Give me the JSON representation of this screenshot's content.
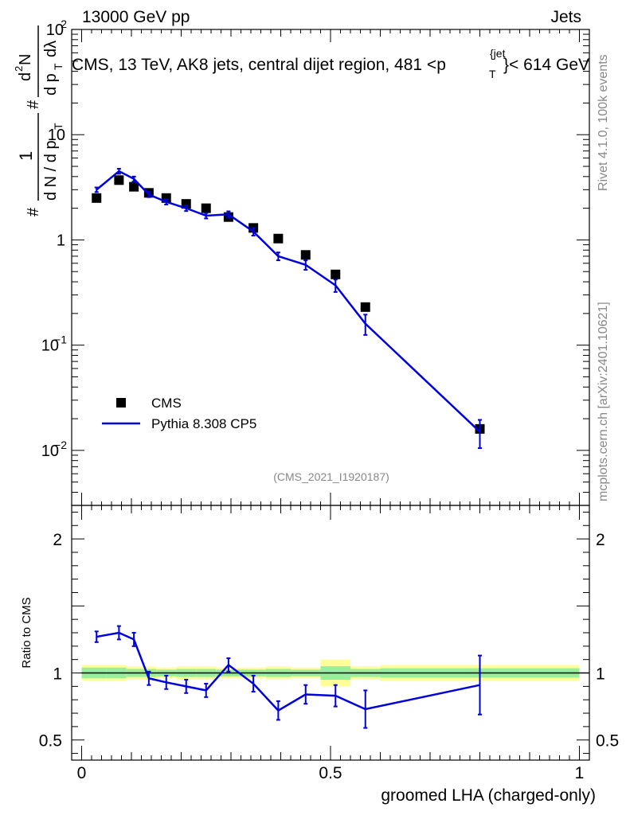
{
  "header": {
    "energy": "13000 GeV pp",
    "category": "Jets"
  },
  "side_labels": {
    "rivet": "Rivet 4.1.0,  100k events",
    "mcplots": "mcplots.cern.ch [arXiv:2401.10621]"
  },
  "chart_data": [
    {
      "type": "scatter",
      "panel": "main",
      "title": "CMS, 13 TeV, AK8 jets, central dijet region, 481 <p_T^{jet}< 614 GeV",
      "title_parts": [
        "CMS, 13 TeV, AK8 jets, central dijet region, 481 <p",
        "{jet",
        "T",
        "}< 614 GeV"
      ],
      "analysis_id": "(CMS_2021_I1920187)",
      "ylabel_parts": [
        "#",
        "1",
        "d N / d p",
        "T",
        "#",
        "d",
        "2",
        "N",
        "d p",
        "T",
        "dλ"
      ],
      "xlim": [
        -0.02,
        1.02
      ],
      "yscale": "log",
      "ylim": [
        0.003,
        100
      ],
      "y_ticks": [
        {
          "value": 100,
          "mant": "10",
          "exp": "2"
        },
        {
          "value": 10,
          "mant": "10",
          "exp": ""
        },
        {
          "value": 1,
          "mant": "1",
          "exp": ""
        },
        {
          "value": 0.1,
          "mant": "10",
          "exp": "−1"
        },
        {
          "value": 0.01,
          "mant": "10",
          "exp": "−2"
        }
      ],
      "legend": [
        "CMS",
        "Pythia 8.308 CP5"
      ],
      "series": [
        {
          "name": "CMS",
          "style": "markers",
          "color": "#000000",
          "x": [
            0.03,
            0.075,
            0.105,
            0.135,
            0.17,
            0.21,
            0.25,
            0.295,
            0.345,
            0.395,
            0.45,
            0.51,
            0.57,
            0.8
          ],
          "y": [
            2.5,
            3.7,
            3.2,
            2.8,
            2.5,
            2.2,
            2.0,
            1.65,
            1.3,
            1.03,
            0.72,
            0.47,
            0.23,
            0.016
          ]
        },
        {
          "name": "Pythia 8.308 CP5",
          "style": "line",
          "color": "#0000dd",
          "x": [
            0.03,
            0.075,
            0.105,
            0.135,
            0.17,
            0.21,
            0.25,
            0.295,
            0.345,
            0.395,
            0.45,
            0.51,
            0.57,
            0.8
          ],
          "y": [
            3.0,
            4.5,
            3.8,
            2.7,
            2.3,
            2.0,
            1.7,
            1.75,
            1.2,
            0.7,
            0.58,
            0.37,
            0.16,
            0.015
          ],
          "err": [
            0.15,
            0.25,
            0.2,
            0.15,
            0.13,
            0.12,
            0.1,
            0.12,
            0.1,
            0.06,
            0.06,
            0.05,
            0.035,
            0.0045
          ]
        }
      ]
    },
    {
      "type": "line",
      "panel": "ratio",
      "ylabel": "Ratio to CMS",
      "xlabel": "groomed LHA (charged-only)",
      "xlim": [
        -0.02,
        1.02
      ],
      "ylim": [
        0.35,
        2.25
      ],
      "y_ticks": [
        {
          "value": 2,
          "label": "2"
        },
        {
          "value": 1,
          "label": "1"
        },
        {
          "value": 0.5,
          "label": "0.5"
        }
      ],
      "x_ticks": [
        {
          "value": 0,
          "label": "0"
        },
        {
          "value": 0.5,
          "label": "0.5"
        },
        {
          "value": 1,
          "label": "1"
        }
      ],
      "uncertainty_bands": {
        "edges": [
          0.0,
          0.05,
          0.09,
          0.12,
          0.15,
          0.19,
          0.23,
          0.27,
          0.32,
          0.37,
          0.42,
          0.48,
          0.54,
          0.6,
          1.0
        ],
        "outer_half_width": [
          0.06,
          0.06,
          0.05,
          0.05,
          0.04,
          0.05,
          0.05,
          0.04,
          0.04,
          0.05,
          0.04,
          0.1,
          0.05,
          0.06
        ],
        "inner_half_width": [
          0.04,
          0.04,
          0.03,
          0.03,
          0.025,
          0.03,
          0.03,
          0.025,
          0.025,
          0.03,
          0.025,
          0.05,
          0.03,
          0.035
        ],
        "outer_color": "#ffff99",
        "inner_color": "#99ee99"
      },
      "series": [
        {
          "name": "Pythia 8.308 CP5",
          "color": "#0000dd",
          "x": [
            0.03,
            0.075,
            0.105,
            0.135,
            0.17,
            0.21,
            0.25,
            0.295,
            0.345,
            0.395,
            0.45,
            0.51,
            0.57,
            0.8
          ],
          "y": [
            1.27,
            1.3,
            1.25,
            0.96,
            0.93,
            0.9,
            0.87,
            1.06,
            0.92,
            0.72,
            0.84,
            0.83,
            0.73,
            0.91
          ],
          "err": [
            0.04,
            0.05,
            0.05,
            0.05,
            0.05,
            0.05,
            0.05,
            0.05,
            0.06,
            0.07,
            0.07,
            0.08,
            0.14,
            0.22
          ]
        }
      ]
    }
  ]
}
